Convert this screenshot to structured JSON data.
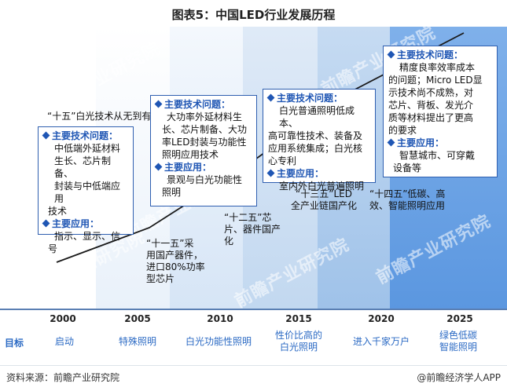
{
  "title": "图表5：中国LED行业发展历程",
  "watermark": "前瞻产业研究院",
  "years": [
    "2000",
    "2005",
    "2010",
    "2015",
    "2020",
    "2025"
  ],
  "goal_label": "目标",
  "goals": [
    "启动",
    "特殊照明",
    "白光功能性照明",
    "性价比高的白光照明",
    "进入千家万户",
    "绿色低碳智能照明"
  ],
  "goals_lines": [
    [
      "启动"
    ],
    [
      "特殊照明"
    ],
    [
      "白光功能性照明"
    ],
    [
      "性价比高的",
      "白光照明"
    ],
    [
      "进入千家万户"
    ],
    [
      "绿色低碳",
      "智能照明"
    ]
  ],
  "phase_labels": [
    {
      "lines": [
        "“十五”白光技术从无到有"
      ]
    },
    {
      "lines": [
        "“十一五”采",
        "用国产器件，",
        "进口80%功率",
        "型芯片"
      ]
    },
    {
      "lines": [
        "“十二五”芯",
        "片、器件国产",
        "化"
      ]
    },
    {
      "lines": [
        "“十三五”LED",
        "全产业链国产化"
      ]
    },
    {
      "lines": [
        "“十四五”低碳、高",
        "效、智能照明应用"
      ]
    }
  ],
  "boxes": [
    {
      "problem_title": "主要技术问题：",
      "problem_lines": [
        "中低端外延材料",
        "生长、芯片制备、",
        "封装与中低端应用",
        "技术"
      ],
      "app_title": "主要应用：",
      "app_lines": [
        "指示、显示、信",
        "号"
      ]
    },
    {
      "problem_title": "主要技术问题：",
      "problem_lines": [
        "大功率外延材料生",
        "长、芯片制备、大功",
        "率LED封装与功能性",
        "照明应用技术"
      ],
      "app_title": "主要应用：",
      "app_lines": [
        "景观与白光功能性",
        "照明"
      ]
    },
    {
      "problem_title": "主要技术问题：",
      "problem_lines": [
        "白光普通照明低成本、",
        "高可靠性技术、装备及",
        "应用系统集成；白光核",
        "心专利"
      ],
      "app_title": "主要应用：",
      "app_lines": [
        "室内外白光普遍照明"
      ]
    },
    {
      "problem_title": "主要技术问题：",
      "problem_lines": [
        "精度良率效率成本",
        "的问题；Micro LED显",
        "示技术尚不成熟，对",
        "芯片、背板、发光介",
        "质等材料提出了更高",
        "的要求"
      ],
      "app_title": "主要应用：",
      "app_lines": [
        "智慧城市、可穿戴",
        "设备等"
      ]
    }
  ],
  "footer": {
    "source": "资料来源：前瞻产业研究院",
    "brand": "@前瞻经济学人APP"
  },
  "colors": {
    "accent": "#1f56b4",
    "goal_text": "#2b6ac4",
    "box_border": "#2f5fb0",
    "band_dark": "#5b97e0"
  }
}
